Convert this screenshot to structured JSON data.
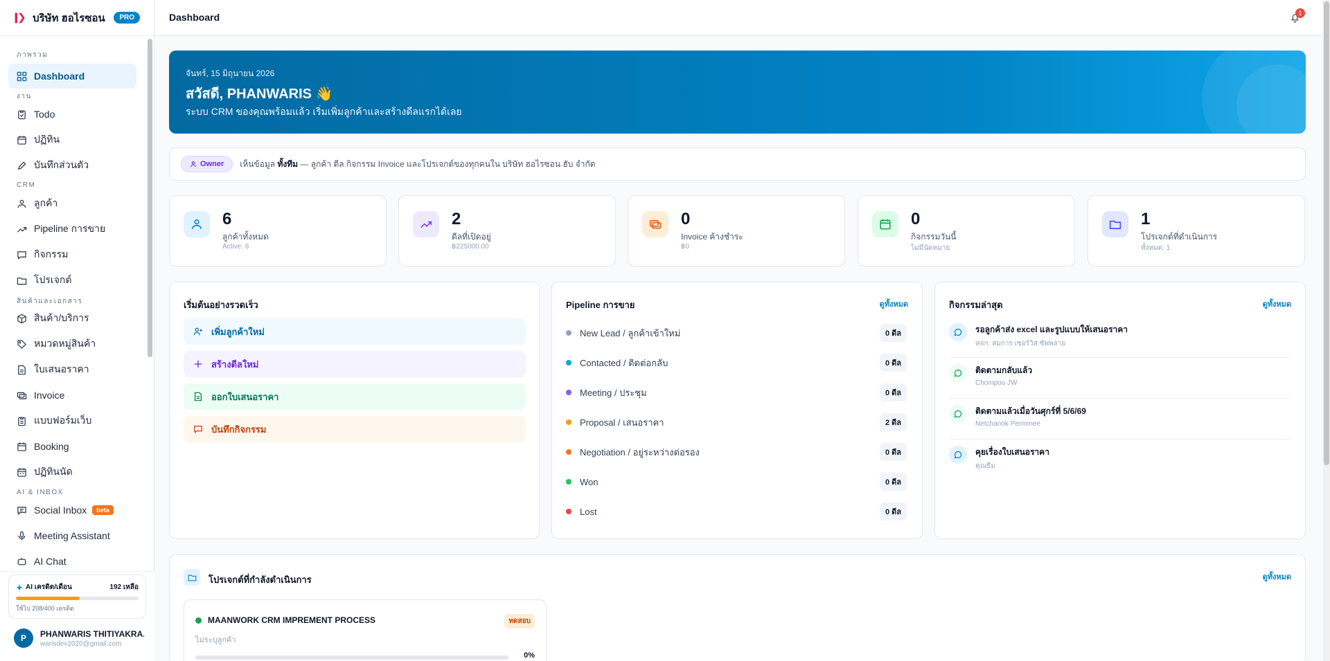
{
  "sidebar": {
    "company": "บริษัท ฮอไรซอน ฮั...",
    "plan_badge": "PRO",
    "sections": {
      "overview": "ภาพรวม",
      "work": "งาน",
      "crm": "CRM",
      "products": "สินค้าและเอกสาร",
      "ai": "AI & INBOX"
    },
    "items": {
      "dashboard": "Dashboard",
      "todo": "Todo",
      "calendar": "ปฏิทิน",
      "notes": "บันทึกส่วนตัว",
      "customers": "ลูกค้า",
      "pipeline": "Pipeline การขาย",
      "activities": "กิจกรรม",
      "projects": "โปรเจกต์",
      "products": "สินค้า/บริการ",
      "categories": "หมวดหมู่สินค้า",
      "quotations": "ใบเสนอราคา",
      "invoice": "Invoice",
      "webforms": "แบบฟอร์มเว็บ",
      "booking": "Booking",
      "appointments": "ปฏิทินนัด",
      "social_inbox": "Social Inbox",
      "social_badge": "beta",
      "meeting": "Meeting Assistant",
      "ai_chat": "AI Chat"
    },
    "credit": {
      "title": "AI เครดิต/เดือน",
      "left": "192 เหลือ",
      "used_text": "ใช้ไป 208/400 เครดิต",
      "used_fraction": 0.52
    },
    "user": {
      "name": "PHANWARIS THITIYAKRA...",
      "email": "warisdev2020@gmail.com",
      "initial": "P"
    }
  },
  "topbar": {
    "title": "Dashboard",
    "notifications": "1"
  },
  "hero": {
    "date": "จันทร์, 15 มิถุนายน 2026",
    "greeting": "สวัสดี, PHANWARIS 👋",
    "subtitle": "ระบบ CRM ของคุณพร้อมแล้ว เริ่มเพิ่มลูกค้าและสร้างดีลแรกได้เลย"
  },
  "owner": {
    "badge": "Owner",
    "text_pre": "เห็นข้อมูล ",
    "text_bold": "ทั้งทีม",
    "text_post": " — ลูกค้า ดีล กิจกรรม Invoice และโปรเจกต์ของทุกคนใน บริษัท ฮอไรซอน ฮับ จำกัด"
  },
  "stats": [
    {
      "value": "6",
      "label": "ลูกค้าทั้งหมด",
      "sub": "Active: 6"
    },
    {
      "value": "2",
      "label": "ดีลที่เปิดอยู่",
      "sub": "฿225000.00"
    },
    {
      "value": "0",
      "label": "Invoice ค้างชำระ",
      "sub": "฿0"
    },
    {
      "value": "0",
      "label": "กิจกรรมวันนี้",
      "sub": "ไม่มีนัดหมาย"
    },
    {
      "value": "1",
      "label": "โปรเจกต์ที่ดำเนินการ",
      "sub": "ทั้งหมด: 1"
    }
  ],
  "quick": {
    "title": "เริ่มต้นอย่างรวดเร็ว",
    "actions": [
      "เพิ่มลูกค้าใหม่",
      "สร้างดีลใหม่",
      "ออกใบเสนอราคา",
      "บันทึกกิจกรรม"
    ]
  },
  "pipeline": {
    "title": "Pipeline การขาย",
    "view_all": "ดูทั้งหมด",
    "stages": [
      {
        "name": "New Lead / ลูกค้าเข้าใหม่",
        "count": "0 ดีล",
        "color": "#94a3b8"
      },
      {
        "name": "Contacted / ติดต่อกลับ",
        "count": "0 ดีล",
        "color": "#0ea5e9"
      },
      {
        "name": "Meeting / ประชุม",
        "count": "0 ดีล",
        "color": "#8b5cf6"
      },
      {
        "name": "Proposal / เสนอราคา",
        "count": "2 ดีล",
        "color": "#f59e0b"
      },
      {
        "name": "Negotiation / อยู่ระหว่างต่อรอง",
        "count": "0 ดีล",
        "color": "#f97316"
      },
      {
        "name": "Won",
        "count": "0 ดีล",
        "color": "#22c55e"
      },
      {
        "name": "Lost",
        "count": "0 ดีล",
        "color": "#ef4444"
      }
    ]
  },
  "activities": {
    "title": "กิจกรรมล่าสุด",
    "view_all": "ดูทั้งหมด",
    "items": [
      {
        "title": "รอลูกค้าส่ง excel และรูปแบบให้เสนอราคา",
        "who": "หจก. สมการ เซอร์วิส ซัพพลาย"
      },
      {
        "title": "ติดตามกลับแล้ว",
        "who": "Chompoo JW"
      },
      {
        "title": "ติดตามแล้วเมื่อวันศุกร์ที่ 5/6/69",
        "who": "Netchanok Permmee"
      },
      {
        "title": "คุยเรื่องใบเสนอราคา",
        "who": "คุณธีม"
      }
    ]
  },
  "projects": {
    "title": "โปรเจกต์ที่กำลังดำเนินการ",
    "view_all": "ดูทั้งหมด",
    "item": {
      "name": "MAANWORK CRM IMPREMENT PROCESS",
      "status": "ทดสอบ",
      "customer": "ไม่ระบุลูกค้า",
      "progress": "0%"
    }
  }
}
